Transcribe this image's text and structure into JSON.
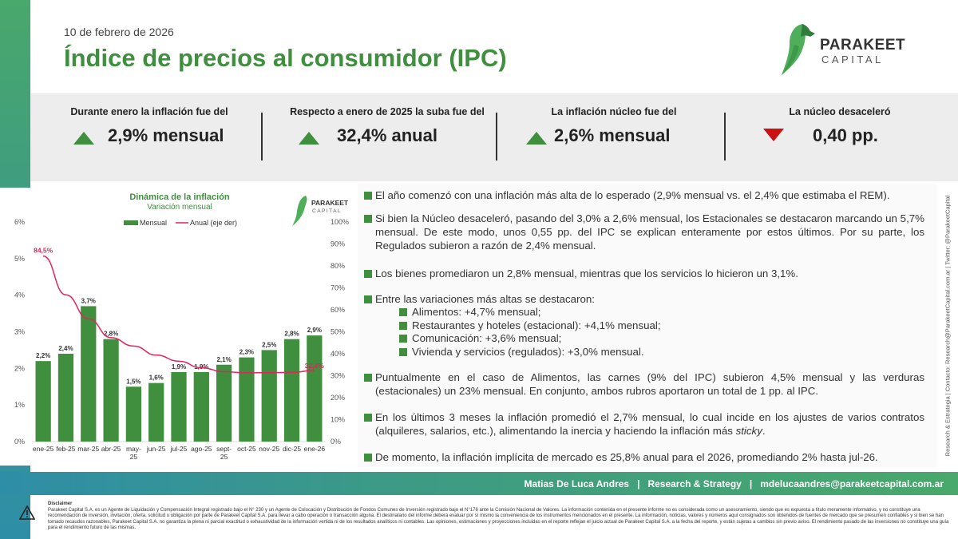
{
  "header": {
    "date": "10 de febrero de 2026",
    "title": "Índice de precios al consumidor (IPC)"
  },
  "logo": {
    "name": "PARAKEET",
    "sub": "CAPITAL",
    "icon": "parakeet-logo-icon"
  },
  "kpis": [
    {
      "label": "Durante enero la inflación fue del",
      "value": "2,9% mensual",
      "trend": "up"
    },
    {
      "label": "Respecto a enero de 2025 la suba fue del",
      "value": "32,4% anual",
      "trend": "up"
    },
    {
      "label": "La inflación núcleo fue del",
      "value": "2,6% mensual",
      "trend": "up"
    },
    {
      "label": "La núcleo desaceleró",
      "value": "0,40 pp.",
      "trend": "down"
    }
  ],
  "chart_data": {
    "type": "bar",
    "title": "Dinámica de la inflación",
    "subtitle": "Variación mensual",
    "logo_name": "PARAKEET",
    "logo_sub": "CAPITAL",
    "categories": [
      "ene-25",
      "feb-25",
      "mar-25",
      "abr-25",
      "may-25",
      "jun-25",
      "jul-25",
      "ago-25",
      "sept-25",
      "oct-25",
      "nov-25",
      "dic-25",
      "ene-26"
    ],
    "category_lines": [
      [
        "ene-25"
      ],
      [
        "feb-25"
      ],
      [
        "mar-25"
      ],
      [
        "abr-25"
      ],
      [
        "may-",
        "25"
      ],
      [
        "jun-25"
      ],
      [
        "jul-25"
      ],
      [
        "ago-25"
      ],
      [
        "sept-",
        "25"
      ],
      [
        "oct-25"
      ],
      [
        "nov-25"
      ],
      [
        "dic-25"
      ],
      [
        "ene-26"
      ]
    ],
    "series": [
      {
        "name": "Mensual",
        "type": "bar",
        "axis": "left",
        "values": [
          2.2,
          2.4,
          3.7,
          2.8,
          1.5,
          1.6,
          1.9,
          1.9,
          2.1,
          2.3,
          2.5,
          2.8,
          2.9
        ],
        "labels": [
          "2,2%",
          "2,4%",
          "3,7%",
          "2,8%",
          "1,5%",
          "1,6%",
          "1,9%",
          "1,9%",
          "2,1%",
          "2,3%",
          "2,5%",
          "2,8%",
          "2,9%"
        ]
      },
      {
        "name": "Anual (eje der)",
        "type": "line",
        "axis": "right",
        "values": [
          84.5,
          66.8,
          55.9,
          47.3,
          43.5,
          39.4,
          36.6,
          33.6,
          31.8,
          31.3,
          31.4,
          31.5,
          32.4
        ],
        "first_label": "84,5%",
        "last_label": "32,4%"
      }
    ],
    "ylim_left": [
      0,
      6
    ],
    "yticks_left": [
      "0%",
      "1%",
      "2%",
      "3%",
      "4%",
      "5%",
      "6%"
    ],
    "ylim_right": [
      0,
      100
    ],
    "yticks_right": [
      "0%",
      "10%",
      "20%",
      "30%",
      "40%",
      "50%",
      "60%",
      "70%",
      "80%",
      "90%",
      "100%"
    ],
    "grid": false,
    "legend": "top",
    "colors": {
      "bar": "#3f8f3f",
      "line": "#e0245e"
    }
  },
  "bullets": [
    "El año comenzó con una inflación más alta de lo esperado (2,9% mensual vs. el 2,4% que estimaba el REM).",
    "Si bien la Núcleo desaceleró, pasando del 3,0% a 2,6% mensual, los Estacionales se destacaron marcando un 5,7% mensual. De este modo, unos 0,55 pp. del IPC se explican enteramente por estos últimos. Por su parte, los Regulados subieron a razón de 2,4% mensual.",
    "Los bienes promediaron un 2,8% mensual, mientras que los servicios lo hicieron un 3,1%.",
    "Entre las variaciones más altas se destacaron:",
    "Puntualmente en el caso de Alimentos, las carnes (9% del IPC) subieron 4,5% mensual y las verduras (estacionales) un 23% mensual. En conjunto, ambos rubros aportaron un total de 1 pp. al IPC.",
    "En los últimos 3 meses la inflación promedió el 2,7% mensual, lo cual incide en los ajustes de varios contratos (alquileres, salarios, etc.), alimentando la inercia y haciendo la inflación más ",
    "De momento, la inflación implícita de mercado es 25,8% anual para el 2026, promediando 2% hasta jul-26."
  ],
  "bullet6_italic": "sticky",
  "bullet6_end": ".",
  "sub_bullets": [
    "Alimentos: +4,7% mensual;",
    "Restaurantes y hoteles (estacional): +4,1% mensual;",
    "Comunicación: +3,6% mensual;",
    "Vivienda y servicios (regulados): +3,0% mensual."
  ],
  "side_text": "Research & Estrategia | Contacto: Research@ParakeetCapital.com.ar | Twitter: @ParakeetCapital",
  "footer": {
    "text": "Matias De Luca Andres   |   Research & Strategy   |   mdelucaandres@parakeetcapital.com.ar"
  },
  "disclaimer": {
    "title": "Disclaimer",
    "body": "Parakeet Capital S.A. es un Agente de Liquidación y Compensación Integral registrado bajo el N° 230 y un Agente de Colocación y Distribución de Fondos Comunes de Inversión registrado bajo el N°176 ante la Comisión Nacional de Valores. La información contenida en el presente informe no es considerada como un asesoramiento, siendo que es expuesta a título meramente informativo, y no constituye una recomendación de inversión, invitación, oferta, solicitud u obligación por parte de Parakeet Capital S.A. para llevar a cabo operación o transacción alguna. El destinatario del informe deberá evaluar por sí mismo la conveniencia de los instrumentos mencionados en el presente. La información, noticias, valores y números aquí consignados son obtenidos de fuentes de mercado que se presumen confiables y si bien se han tomado recaudos razonables, Parakeet Capital S.A. no garantiza la plena ni parcial exactitud o exhaustividad de la información vertida ni de los resultados analíticos ni contables. Las opiniones, estimaciones y proyecciones incluidas en el reporte reflejan el juicio actual de Parakeet Capital S.A. a la fecha del reporte, y están sujetas a cambios sin previo aviso. El rendimiento pasado de las inversiones no constituye una guía para el rendimiento futuro de las mismas."
  }
}
